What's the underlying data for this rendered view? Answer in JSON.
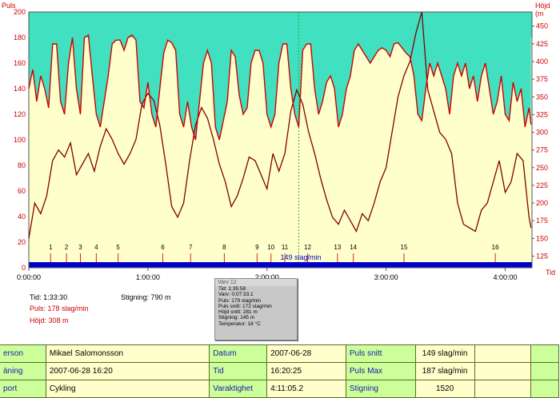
{
  "chart_data": {
    "type": "line",
    "left_axis_title": "Puls",
    "right_axis_title": "Höjd (m",
    "bottom_axis_unit": "Tid",
    "y_left_ticks": [
      "200",
      "180",
      "160",
      "140",
      "120",
      "100",
      "80",
      "60",
      "40",
      "20",
      "0"
    ],
    "y_left_range": [
      0,
      200
    ],
    "y_right_ticks": [
      "450",
      "425",
      "400",
      "375",
      "350",
      "325",
      "300",
      "275",
      "250",
      "225",
      "200",
      "175",
      "150",
      "125"
    ],
    "y_right_range": [
      108.6,
      470
    ],
    "x_ticks": [
      "0:00:00",
      "1:00:00",
      "2:00:00",
      "3:00:00",
      "4:00:00"
    ],
    "x_range_minutes": [
      0,
      253.5
    ],
    "heart_rate_zone_upper_bpm": 180,
    "heart_rate_zone_lower_bpm": 0,
    "zone_label": "149 slag/min",
    "lap_markers": [
      {
        "label": "1",
        "minute": 11
      },
      {
        "label": "2",
        "minute": 19
      },
      {
        "label": "3",
        "minute": 26
      },
      {
        "label": "4",
        "minute": 34
      },
      {
        "label": "5",
        "minute": 45
      },
      {
        "label": "6",
        "minute": 67.5
      },
      {
        "label": "7",
        "minute": 81.5
      },
      {
        "label": "8",
        "minute": 98.5
      },
      {
        "label": "9",
        "minute": 115
      },
      {
        "label": "10",
        "minute": 122
      },
      {
        "label": "11",
        "minute": 129
      },
      {
        "label": "12",
        "minute": 140.5
      },
      {
        "label": "13",
        "minute": 155.5
      },
      {
        "label": "14",
        "minute": 163.5
      },
      {
        "label": "15",
        "minute": 189
      },
      {
        "label": "16",
        "minute": 235
      }
    ],
    "cursor_minute": 135.97,
    "series": [
      {
        "name": "Puls",
        "color": "#d00000",
        "x_minutes": [
          0,
          2,
          4,
          6,
          8,
          10,
          12,
          14,
          16,
          18,
          20,
          22,
          24,
          26,
          28,
          30,
          32,
          34,
          36,
          38,
          40,
          42,
          44,
          46,
          48,
          50,
          52,
          54,
          56,
          58,
          60,
          62,
          64,
          66,
          68,
          70,
          72,
          74,
          76,
          78,
          80,
          82,
          84,
          86,
          88,
          90,
          92,
          94,
          96,
          98,
          100,
          102,
          104,
          106,
          108,
          110,
          112,
          114,
          116,
          118,
          120,
          122,
          124,
          126,
          128,
          130,
          132,
          134,
          136,
          138,
          140,
          142,
          144,
          146,
          148,
          150,
          152,
          154,
          156,
          158,
          160,
          162,
          164,
          166,
          168,
          170,
          172,
          174,
          176,
          178,
          180,
          182,
          184,
          186,
          188,
          190,
          192,
          194,
          196,
          198,
          200,
          202,
          204,
          206,
          208,
          210,
          212,
          214,
          216,
          218,
          220,
          222,
          224,
          226,
          228,
          230,
          232,
          234,
          236,
          238,
          240,
          242,
          244,
          246,
          248,
          250,
          252,
          253
        ],
        "values": [
          140,
          155,
          130,
          150,
          140,
          125,
          175,
          175,
          130,
          120,
          160,
          180,
          140,
          120,
          180,
          182,
          150,
          120,
          110,
          130,
          150,
          175,
          178,
          178,
          170,
          180,
          182,
          178,
          130,
          125,
          145,
          120,
          110,
          140,
          168,
          178,
          176,
          170,
          120,
          110,
          130,
          110,
          100,
          130,
          160,
          170,
          160,
          110,
          100,
          115,
          130,
          170,
          165,
          135,
          120,
          125,
          160,
          170,
          170,
          160,
          120,
          110,
          120,
          160,
          175,
          175,
          140,
          120,
          110,
          170,
          175,
          175,
          140,
          120,
          130,
          145,
          150,
          140,
          110,
          120,
          140,
          150,
          170,
          175,
          170,
          165,
          160,
          165,
          170,
          172,
          170,
          165,
          175,
          176,
          172,
          168,
          165,
          150,
          120,
          115,
          140,
          160,
          150,
          160,
          150,
          140,
          120,
          150,
          160,
          150,
          160,
          140,
          150,
          130,
          150,
          160,
          140,
          120,
          130,
          150,
          120,
          115,
          145,
          130,
          140,
          110,
          125,
          112
        ]
      },
      {
        "name": "Höjd",
        "color": "#800000",
        "x_minutes": [
          0,
          3,
          6,
          9,
          12,
          15,
          18,
          21,
          24,
          27,
          30,
          33,
          36,
          39,
          42,
          45,
          48,
          51,
          54,
          57,
          60,
          63,
          66,
          69,
          72,
          75,
          78,
          81,
          84,
          87,
          90,
          93,
          96,
          99,
          102,
          105,
          108,
          111,
          114,
          117,
          120,
          123,
          126,
          129,
          132,
          135,
          138,
          141,
          144,
          147,
          150,
          153,
          156,
          159,
          162,
          165,
          168,
          171,
          174,
          177,
          180,
          183,
          186,
          189,
          192,
          195,
          198,
          201,
          204,
          207,
          210,
          213,
          216,
          219,
          222,
          225,
          228,
          231,
          234,
          237,
          240,
          243,
          246,
          249,
          252,
          253
        ],
        "values": [
          150,
          200,
          185,
          210,
          260,
          275,
          265,
          285,
          240,
          255,
          270,
          245,
          280,
          305,
          290,
          270,
          255,
          270,
          290,
          340,
          355,
          345,
          310,
          255,
          195,
          180,
          200,
          260,
          310,
          335,
          320,
          290,
          255,
          230,
          195,
          210,
          235,
          265,
          260,
          240,
          220,
          270,
          245,
          270,
          330,
          360,
          340,
          300,
          270,
          235,
          205,
          180,
          170,
          190,
          175,
          160,
          185,
          175,
          200,
          230,
          250,
          300,
          350,
          380,
          400,
          440,
          470,
          360,
          330,
          300,
          290,
          270,
          200,
          170,
          165,
          160,
          190,
          200,
          230,
          260,
          215,
          230,
          270,
          260,
          180,
          165
        ]
      }
    ]
  },
  "info": {
    "time_label": "Tid: 1:33:30",
    "pulse_label": "Puls: 178 slag/min",
    "height_label": "Höjd: 308 m",
    "climb_label": "Stigning: 790 m"
  },
  "tooltip": {
    "title": "Varv 12",
    "lines": [
      "Tid: 1:35:58",
      "Varv: 0:07:33.1",
      "Puls: 179 slag/min",
      "Puls snitt: 172 slag/min",
      "Höjd snitt: 281 m",
      "Stigning: 145 m",
      "Temperatur: 18 °C"
    ]
  },
  "summary": {
    "row1": {
      "l1": "erson",
      "v1": "Mikael Salomonsson",
      "l2": "Datum",
      "v2": "2007-06-28",
      "l3": "Puls snitt",
      "v3": "149 slag/min"
    },
    "row2": {
      "l1": "äning",
      "v1": "2007-06-28 16:20",
      "l2": "Tid",
      "v2": "16:20:25",
      "l3": "Puls Max",
      "v3": "187 slag/min"
    },
    "row3": {
      "l1": "port",
      "v1": "Cykling",
      "l2": "Varaktighet",
      "v2": "4:11:05.2",
      "l3": "Stigning",
      "v3": "1520"
    }
  },
  "colors": {
    "zone_fill": "#ffffcc",
    "above_zone_fill": "#40e0c0",
    "zone_bar": "#0000cc",
    "lap_marker": "#dd2222",
    "axis_text": "#cc0000",
    "label_cell": "#ccff99",
    "value_cell": "#ffffcc"
  }
}
